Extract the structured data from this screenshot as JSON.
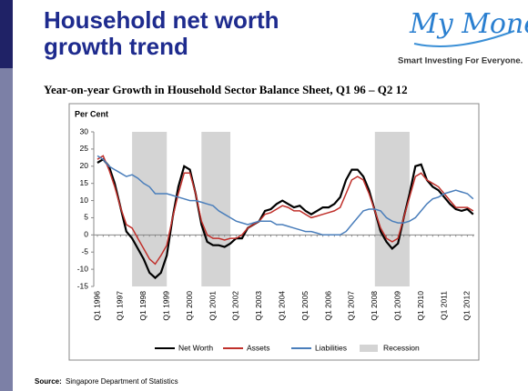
{
  "header": {
    "title_lines": [
      "Household net worth",
      "growth trend"
    ]
  },
  "logo": {
    "brand": "My Money",
    "tagline": "Smart Investing For Everyone."
  },
  "chart_data": {
    "type": "line",
    "title": "Year-on-year Growth in Household Sector Balance Sheet, Q1 96 – Q2 12",
    "y_label": "Per Cent",
    "categories": [
      "Q1 1996",
      null,
      null,
      null,
      "Q1 1997",
      null,
      null,
      null,
      "Q1 1998",
      null,
      null,
      null,
      "Q1 1999",
      null,
      null,
      null,
      "Q1 2000",
      null,
      null,
      null,
      "Q1 2001",
      null,
      null,
      null,
      "Q1 2002",
      null,
      null,
      null,
      "Q1 2003",
      null,
      null,
      null,
      "Q1 2004",
      null,
      null,
      null,
      "Q1 2005",
      null,
      null,
      null,
      "Q1 2006",
      null,
      null,
      null,
      "Q1 2007",
      null,
      null,
      null,
      "Q1 2008",
      null,
      null,
      null,
      "Q1 2009",
      null,
      null,
      null,
      "Q1 2010",
      null,
      null,
      null,
      "Q1 2011",
      null,
      null,
      null,
      "Q1 2012",
      null
    ],
    "series": [
      {
        "name": "Net Worth",
        "color": "#000000",
        "values": [
          21,
          22,
          20,
          15,
          8,
          1,
          -1,
          -4,
          -7,
          -11,
          -12.5,
          -11,
          -6,
          5,
          14,
          20,
          19,
          12,
          3,
          -2,
          -3,
          -3,
          -3.5,
          -2.5,
          -1,
          -1,
          2,
          3,
          4,
          7,
          7.5,
          9,
          10,
          9,
          8,
          8.5,
          7,
          6,
          7,
          8,
          8,
          9,
          11,
          16,
          19,
          19,
          17,
          13,
          7,
          1,
          -2,
          -4,
          -2.5,
          5,
          12,
          20,
          20.5,
          16,
          14,
          13,
          11,
          9,
          7.5,
          7,
          7.5,
          6
        ]
      },
      {
        "name": "Assets",
        "color": "#c0302b",
        "values": [
          22,
          23,
          19,
          14,
          8,
          3,
          2,
          -1,
          -4,
          -7,
          -8.5,
          -6,
          -3,
          5,
          12,
          18,
          18,
          12,
          4,
          0,
          -1,
          -1,
          -1.5,
          -1,
          -1,
          0,
          2,
          3,
          4,
          6,
          6.5,
          7.5,
          8.5,
          8,
          7,
          7,
          6,
          5,
          5.5,
          6,
          6.5,
          7,
          8,
          12,
          16,
          17,
          16,
          12,
          7,
          2,
          -1,
          -2,
          -1,
          5,
          11,
          17,
          18,
          16,
          15,
          14,
          12,
          10,
          8,
          8,
          8,
          7
        ]
      },
      {
        "name": "Liabilities",
        "color": "#4a7ebb",
        "values": [
          23,
          22,
          20,
          19,
          18,
          17,
          17.5,
          16.5,
          15,
          14,
          12,
          12,
          12,
          11.5,
          11,
          10.5,
          10,
          10,
          9.5,
          9,
          8.5,
          7,
          6,
          5,
          4,
          3.5,
          3,
          3.5,
          4,
          4,
          4,
          3,
          3,
          2.5,
          2,
          1.5,
          1,
          1,
          0.5,
          0,
          0,
          0,
          0,
          1,
          3,
          5,
          7,
          7.5,
          7.5,
          7,
          5,
          4,
          3.5,
          3.5,
          4,
          5,
          7,
          9,
          10.5,
          11,
          12,
          12.5,
          13,
          12.5,
          12,
          10.5
        ]
      }
    ],
    "recessions": {
      "name": "Recession",
      "color": "#d4d4d4",
      "spans": [
        [
          6,
          12
        ],
        [
          18,
          23
        ],
        [
          48,
          54
        ]
      ]
    },
    "ylim": [
      -15,
      30
    ],
    "yticks": [
      -15,
      -10,
      -5,
      0,
      5,
      10,
      15,
      20,
      25,
      30
    ],
    "source_label": "Source:",
    "source": "Singapore Department of Statistics"
  }
}
